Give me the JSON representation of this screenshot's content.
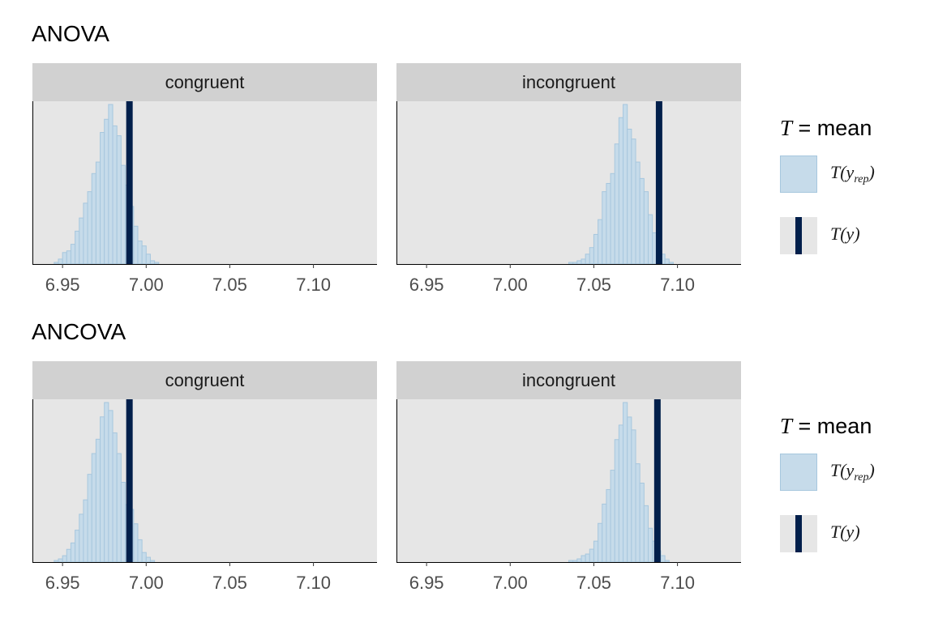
{
  "colors": {
    "hist_fill": "#c6dbea",
    "hist_stroke": "#a7c7de",
    "observed": "#011f4b",
    "panel_bg": "#e6e6e6",
    "strip_bg": "#d1d1d1"
  },
  "legend": {
    "title_var": "T",
    "title_rest": " = mean",
    "yrep_label": "T(y",
    "yrep_sub": "rep",
    "yrep_close": ")",
    "y_label": "T(y)"
  },
  "chart_data": [
    {
      "type": "histogram",
      "title": "ANOVA",
      "facets": [
        "congruent",
        "incongruent"
      ],
      "xlim": [
        6.932,
        7.138
      ],
      "xticks": [
        6.95,
        7.0,
        7.05,
        7.1
      ],
      "xtick_labels": [
        "6.95",
        "7.00",
        "7.05",
        "7.10"
      ],
      "bin_width": 0.0025,
      "panels": [
        {
          "facet": "congruent",
          "observed": 6.99,
          "bin_start": 6.945,
          "counts": [
            1,
            3,
            7,
            8,
            12,
            20,
            28,
            37,
            44,
            55,
            62,
            80,
            88,
            97,
            84,
            78,
            60,
            48,
            35,
            23,
            14,
            11,
            6,
            2,
            1
          ]
        },
        {
          "facet": "incongruent",
          "observed": 7.089,
          "bin_start": 7.035,
          "counts": [
            1,
            1,
            2,
            3,
            6,
            10,
            18,
            27,
            44,
            49,
            55,
            73,
            89,
            97,
            82,
            76,
            62,
            52,
            44,
            30,
            19,
            12,
            6,
            3,
            1
          ]
        }
      ]
    },
    {
      "type": "histogram",
      "title": "ANCOVA",
      "facets": [
        "congruent",
        "incongruent"
      ],
      "xlim": [
        6.932,
        7.138
      ],
      "xticks": [
        6.95,
        7.0,
        7.05,
        7.1
      ],
      "xtick_labels": [
        "6.95",
        "7.00",
        "7.05",
        "7.10"
      ],
      "bin_width": 0.0025,
      "panels": [
        {
          "facet": "congruent",
          "observed": 6.99,
          "bin_start": 6.945,
          "counts": [
            1,
            2,
            4,
            8,
            12,
            20,
            30,
            39,
            55,
            68,
            77,
            91,
            100,
            95,
            81,
            68,
            50,
            36,
            33,
            24,
            14,
            6,
            3,
            1
          ]
        },
        {
          "facet": "incongruent",
          "observed": 7.088,
          "bin_start": 7.035,
          "counts": [
            1,
            1,
            2,
            4,
            5,
            8,
            13,
            24,
            36,
            45,
            57,
            76,
            85,
            99,
            90,
            82,
            61,
            49,
            35,
            21,
            13,
            7,
            4,
            1
          ]
        }
      ]
    }
  ]
}
